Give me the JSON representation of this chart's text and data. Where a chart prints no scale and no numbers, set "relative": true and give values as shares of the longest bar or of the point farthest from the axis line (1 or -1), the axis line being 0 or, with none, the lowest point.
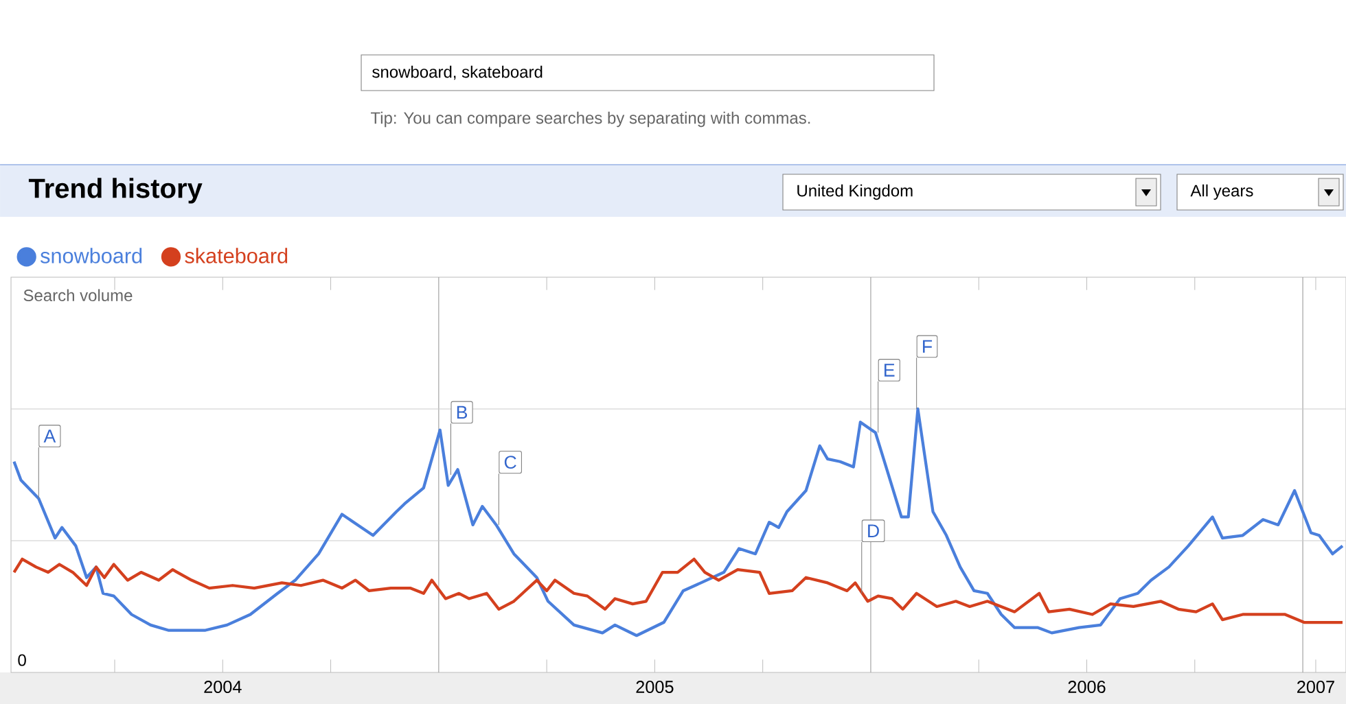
{
  "chart_data": {
    "type": "line",
    "title": "Trend history",
    "relative": true,
    "xlim": [
      2004.01,
      2007.1
    ],
    "xticks": [
      {
        "value": 2004.25,
        "label": null
      },
      {
        "value": 2004.5,
        "label": "2004"
      },
      {
        "value": 2004.75,
        "label": null
      },
      {
        "value": 2005.25,
        "label": null
      },
      {
        "value": 2005.5,
        "label": "2005"
      },
      {
        "value": 2005.75,
        "label": null
      },
      {
        "value": 2006.25,
        "label": null
      },
      {
        "value": 2006.5,
        "label": "2006"
      },
      {
        "value": 2006.75,
        "label": null
      },
      {
        "value": 2007.03,
        "label": "2007"
      }
    ],
    "legend": "top left",
    "marker": "none",
    "line_style": "solid",
    "series": [
      {
        "name": "snowboard",
        "color": "#4a7fdc",
        "x": [
          2004.017,
          2004.033,
          2004.074,
          2004.112,
          2004.128,
          2004.16,
          2004.185,
          2004.207,
          2004.223,
          2004.248,
          2004.289,
          2004.333,
          2004.374,
          2004.46,
          2004.51,
          2004.564,
          2004.627,
          2004.668,
          2004.722,
          2004.776,
          2004.848,
          2004.902,
          2004.921,
          2004.965,
          2005.003,
          2005.022,
          2005.044,
          2005.079,
          2005.101,
          2005.133,
          2005.174,
          2005.227,
          2005.253,
          2005.313,
          2005.379,
          2005.408,
          2005.458,
          2005.521,
          2005.566,
          2005.607,
          2005.66,
          2005.695,
          2005.733,
          2005.765,
          2005.787,
          2005.806,
          2005.85,
          2005.882,
          2005.9,
          2005.929,
          2005.96,
          2005.976,
          2006.011,
          2006.043,
          2006.071,
          2006.087,
          2006.109,
          2006.144,
          2006.175,
          2006.207,
          2006.239,
          2006.27,
          2006.302,
          2006.333,
          2006.387,
          2006.419,
          2006.482,
          2006.532,
          2006.577,
          2006.618,
          2006.649,
          2006.69,
          2006.735,
          2006.791,
          2006.814,
          2006.861,
          2006.908,
          2006.943,
          2006.981,
          2007.019,
          2007.038,
          2007.069,
          2007.092
        ],
        "values": [
          0.8,
          0.73,
          0.66,
          0.51,
          0.55,
          0.48,
          0.36,
          0.4,
          0.3,
          0.29,
          0.22,
          0.18,
          0.16,
          0.16,
          0.18,
          0.22,
          0.3,
          0.35,
          0.45,
          0.6,
          0.52,
          0.61,
          0.64,
          0.7,
          0.92,
          0.71,
          0.77,
          0.56,
          0.63,
          0.56,
          0.45,
          0.36,
          0.27,
          0.18,
          0.15,
          0.18,
          0.14,
          0.19,
          0.31,
          0.34,
          0.38,
          0.47,
          0.45,
          0.57,
          0.55,
          0.61,
          0.69,
          0.86,
          0.81,
          0.8,
          0.78,
          0.95,
          0.91,
          0.74,
          0.59,
          0.59,
          1.0,
          0.61,
          0.52,
          0.4,
          0.31,
          0.3,
          0.22,
          0.17,
          0.17,
          0.15,
          0.17,
          0.18,
          0.28,
          0.3,
          0.35,
          0.4,
          0.48,
          0.59,
          0.51,
          0.52,
          0.58,
          0.56,
          0.69,
          0.53,
          0.52,
          0.45,
          0.48
        ]
      },
      {
        "name": "skateboard",
        "color": "#d4401e",
        "x": [
          2004.017,
          2004.036,
          2004.068,
          2004.096,
          2004.122,
          2004.153,
          2004.185,
          2004.207,
          2004.226,
          2004.248,
          2004.28,
          2004.311,
          2004.352,
          2004.384,
          2004.428,
          2004.469,
          2004.523,
          2004.573,
          2004.637,
          2004.681,
          2004.732,
          2004.776,
          2004.807,
          2004.839,
          2004.889,
          2004.934,
          2004.965,
          2004.984,
          2005.016,
          2005.047,
          2005.07,
          2005.111,
          2005.139,
          2005.174,
          2005.227,
          2005.25,
          2005.269,
          2005.313,
          2005.344,
          2005.385,
          2005.408,
          2005.449,
          2005.48,
          2005.518,
          2005.553,
          2005.591,
          2005.616,
          2005.648,
          2005.692,
          2005.743,
          2005.765,
          2005.818,
          2005.85,
          2005.9,
          2005.945,
          2005.964,
          2005.993,
          2006.017,
          2006.049,
          2006.074,
          2006.106,
          2006.153,
          2006.197,
          2006.229,
          2006.27,
          2006.333,
          2006.39,
          2006.412,
          2006.46,
          2006.513,
          2006.555,
          2006.608,
          2006.671,
          2006.712,
          2006.753,
          2006.791,
          2006.814,
          2006.861,
          2006.912,
          2006.959,
          2007.003,
          2007.069,
          2007.092
        ],
        "values": [
          0.38,
          0.43,
          0.4,
          0.38,
          0.41,
          0.38,
          0.33,
          0.4,
          0.36,
          0.41,
          0.35,
          0.38,
          0.35,
          0.39,
          0.35,
          0.32,
          0.33,
          0.32,
          0.34,
          0.33,
          0.35,
          0.32,
          0.35,
          0.31,
          0.32,
          0.32,
          0.3,
          0.35,
          0.28,
          0.3,
          0.28,
          0.3,
          0.24,
          0.27,
          0.35,
          0.31,
          0.35,
          0.3,
          0.29,
          0.24,
          0.28,
          0.26,
          0.27,
          0.38,
          0.38,
          0.43,
          0.38,
          0.35,
          0.39,
          0.38,
          0.3,
          0.31,
          0.36,
          0.34,
          0.31,
          0.34,
          0.27,
          0.29,
          0.28,
          0.24,
          0.3,
          0.25,
          0.27,
          0.25,
          0.27,
          0.23,
          0.3,
          0.23,
          0.24,
          0.22,
          0.26,
          0.25,
          0.27,
          0.24,
          0.23,
          0.26,
          0.2,
          0.22,
          0.22,
          0.22,
          0.19,
          0.19,
          0.19
        ]
      }
    ],
    "ref_lines": [
      {
        "axis": "x",
        "value": 2005,
        "color": "#999999"
      },
      {
        "axis": "x",
        "value": 2006,
        "color": "#999999"
      },
      {
        "axis": "x",
        "value": 2007,
        "color": "#999999"
      },
      {
        "axis": "y",
        "value": 0.5,
        "color": "#cccccc"
      },
      {
        "axis": "y",
        "value": 1.0,
        "color": "#cccccc"
      }
    ],
    "annotations": [
      "snowboard, skateboard",
      "Tip: You can compare searches by separating with commas.",
      "United Kingdom",
      "All years",
      "Search volume",
      "0",
      {
        "text": "A",
        "x": 2004.074,
        "y": 0.66
      },
      {
        "text": "B",
        "x": 2005.028,
        "y": 0.75
      },
      {
        "text": "C",
        "x": 2005.139,
        "y": 0.56
      },
      {
        "text": "D",
        "x": 2005.979,
        "y": 0.3
      },
      {
        "text": "E",
        "x": 2006.017,
        "y": 0.91
      },
      {
        "text": "F",
        "x": 2006.106,
        "y": 1.0
      }
    ]
  }
}
